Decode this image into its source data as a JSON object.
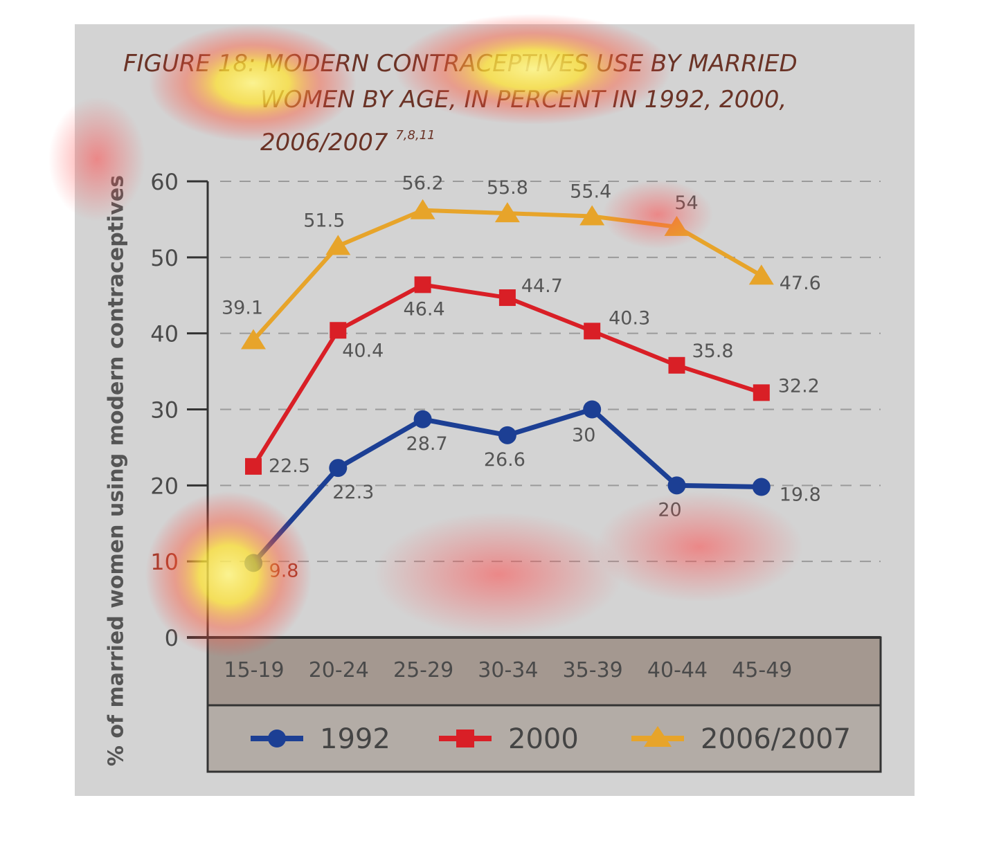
{
  "figure": {
    "title_line1": "FIGURE 18: MODERN CONTRACEPTIVES USE BY MARRIED",
    "title_line2": "WOMEN BY AGE, IN PERCENT IN 1992, 2000,",
    "title_line3": "2006/2007",
    "title_refs": "7,8,11"
  },
  "colors": {
    "s1992": "#1c3f94",
    "s2000": "#d91f26",
    "s2006": "#e7a42a",
    "grid": "#9a9a9a",
    "axis_band": "#a49890",
    "legend_band": "#b3aca6"
  },
  "chart_data": {
    "type": "line",
    "ylabel": "% of married women using modern contraceptives",
    "xlabel": "",
    "categories": [
      "15-19",
      "20-24",
      "25-29",
      "30-34",
      "35-39",
      "40-44",
      "45-49"
    ],
    "ylim": [
      0,
      60
    ],
    "yticks": [
      0,
      10,
      20,
      30,
      40,
      50,
      60
    ],
    "grid": true,
    "legend_position": "bottom",
    "series": [
      {
        "name": "1992",
        "marker": "circle",
        "values": [
          9.8,
          22.3,
          28.7,
          26.6,
          30,
          20,
          19.8
        ]
      },
      {
        "name": "2000",
        "marker": "square",
        "values": [
          22.5,
          40.4,
          46.4,
          44.7,
          40.3,
          35.8,
          32.2
        ]
      },
      {
        "name": "2006/2007",
        "marker": "triangle",
        "values": [
          39.1,
          51.5,
          56.2,
          55.8,
          55.4,
          54,
          47.6
        ]
      }
    ]
  }
}
